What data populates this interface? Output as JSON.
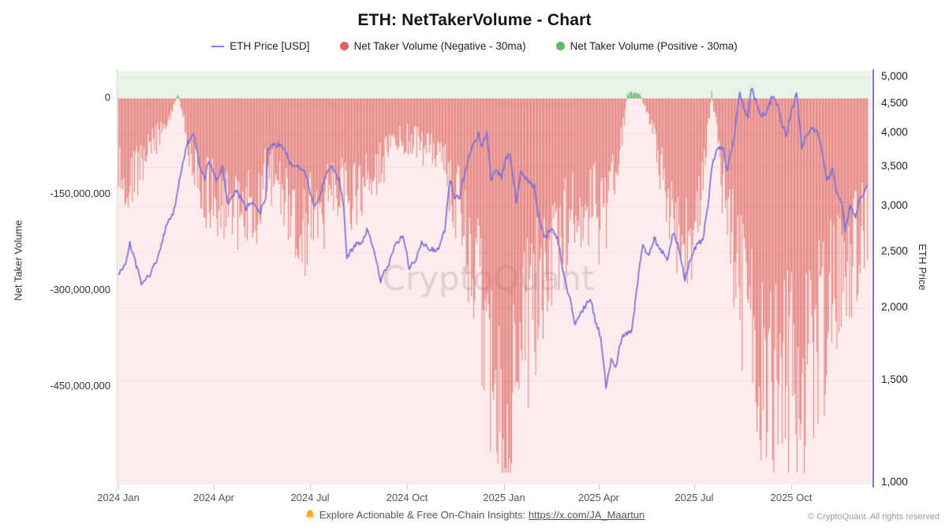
{
  "header": {
    "title": "ETH: NetTakerVolume - Chart"
  },
  "legend": {
    "items": [
      {
        "label": "ETH Price [USD]",
        "marker": "line",
        "color": "#8a7fe0"
      },
      {
        "label": "Net Taker Volume (Negative - 30ma)",
        "marker": "dot",
        "color": "#e6605d"
      },
      {
        "label": "Net Taker Volume (Positive - 30ma)",
        "marker": "dot",
        "color": "#63b863"
      }
    ]
  },
  "watermark": "CryptoQuant",
  "footer": {
    "icon": "bell-icon",
    "text": "Explore Actionable & Free On-Chain Insights: ",
    "link": "https://x.com/JA_Maartun",
    "copyright": "© CryptoQuant. All rights reserved"
  },
  "chart_data": {
    "type": "mixed",
    "title": "ETH: NetTakerVolume - Chart",
    "xlabel": "",
    "x_axis": {
      "start": "2024-01-01",
      "end": "2025-12-12",
      "ticks": [
        "2024 Jan",
        "2024 Apr",
        "2024 Jul",
        "2024 Oct",
        "2025 Jan",
        "2025 Apr",
        "2025 Jul",
        "2025 Oct"
      ]
    },
    "left_axis": {
      "title": "Net Taker Volume",
      "unit": "USD",
      "ylim_millions": [
        -590,
        43
      ],
      "ticks": [
        {
          "label": "0",
          "value_millions": 0
        },
        {
          "label": "-150,000,000",
          "value_millions": -150
        },
        {
          "label": "-300,000,000",
          "value_millions": -300
        },
        {
          "label": "-450,000,000",
          "value_millions": -450
        }
      ]
    },
    "right_axis": {
      "title": "ETH Price",
      "scale": "log",
      "ylim": [
        1000,
        5100
      ],
      "ticks": [
        {
          "label": "5,000",
          "value": 5000
        },
        {
          "label": "4,500",
          "value": 4500
        },
        {
          "label": "4,000",
          "value": 4000
        },
        {
          "label": "3,500",
          "value": 3500
        },
        {
          "label": "3,000",
          "value": 3000
        },
        {
          "label": "2,500",
          "value": 2500
        },
        {
          "label": "2,000",
          "value": 2000
        },
        {
          "label": "1,500",
          "value": 1500
        },
        {
          "label": "1,000",
          "value": 1000
        }
      ]
    },
    "background_zones": {
      "positive": "#e9f3e6",
      "negative": "#fcedec"
    },
    "grid": "horizontal-faint",
    "series": [
      {
        "name": "ETH Price [USD]",
        "type": "line",
        "axis": "right",
        "color": "#7b6fd9",
        "points": [
          [
            "2024-01-01",
            2300
          ],
          [
            "2024-01-08",
            2380
          ],
          [
            "2024-01-12",
            2580
          ],
          [
            "2024-01-23",
            2200
          ],
          [
            "2024-02-01",
            2300
          ],
          [
            "2024-02-09",
            2490
          ],
          [
            "2024-02-16",
            2790
          ],
          [
            "2024-02-23",
            2950
          ],
          [
            "2024-02-29",
            3380
          ],
          [
            "2024-03-06",
            3820
          ],
          [
            "2024-03-12",
            4010
          ],
          [
            "2024-03-18",
            3530
          ],
          [
            "2024-03-23",
            3340
          ],
          [
            "2024-03-27",
            3600
          ],
          [
            "2024-04-03",
            3310
          ],
          [
            "2024-04-09",
            3510
          ],
          [
            "2024-04-14",
            3010
          ],
          [
            "2024-04-22",
            3200
          ],
          [
            "2024-05-01",
            2970
          ],
          [
            "2024-05-07",
            3060
          ],
          [
            "2024-05-14",
            2900
          ],
          [
            "2024-05-20",
            3090
          ],
          [
            "2024-05-22",
            3790
          ],
          [
            "2024-05-28",
            3850
          ],
          [
            "2024-06-05",
            3810
          ],
          [
            "2024-06-12",
            3560
          ],
          [
            "2024-06-20",
            3510
          ],
          [
            "2024-06-27",
            3400
          ],
          [
            "2024-07-05",
            2970
          ],
          [
            "2024-07-10",
            3100
          ],
          [
            "2024-07-17",
            3450
          ],
          [
            "2024-07-22",
            3500
          ],
          [
            "2024-07-29",
            3320
          ],
          [
            "2024-08-02",
            2990
          ],
          [
            "2024-08-05",
            2450
          ],
          [
            "2024-08-12",
            2560
          ],
          [
            "2024-08-20",
            2620
          ],
          [
            "2024-08-25",
            2740
          ],
          [
            "2024-08-31",
            2510
          ],
          [
            "2024-09-06",
            2230
          ],
          [
            "2024-09-13",
            2360
          ],
          [
            "2024-09-20",
            2560
          ],
          [
            "2024-09-27",
            2690
          ],
          [
            "2024-10-03",
            2360
          ],
          [
            "2024-10-09",
            2390
          ],
          [
            "2024-10-15",
            2610
          ],
          [
            "2024-10-23",
            2530
          ],
          [
            "2024-10-31",
            2510
          ],
          [
            "2024-11-06",
            2730
          ],
          [
            "2024-11-11",
            3330
          ],
          [
            "2024-11-15",
            3090
          ],
          [
            "2024-11-20",
            3110
          ],
          [
            "2024-11-25",
            3420
          ],
          [
            "2024-11-30",
            3700
          ],
          [
            "2024-12-04",
            3850
          ],
          [
            "2024-12-08",
            4000
          ],
          [
            "2024-12-11",
            3830
          ],
          [
            "2024-12-16",
            3990
          ],
          [
            "2024-12-20",
            3340
          ],
          [
            "2024-12-24",
            3480
          ],
          [
            "2024-12-30",
            3360
          ],
          [
            "2025-01-03",
            3610
          ],
          [
            "2025-01-07",
            3690
          ],
          [
            "2025-01-13",
            3030
          ],
          [
            "2025-01-17",
            3430
          ],
          [
            "2025-01-24",
            3310
          ],
          [
            "2025-01-30",
            3240
          ],
          [
            "2025-02-03",
            2880
          ],
          [
            "2025-02-09",
            2630
          ],
          [
            "2025-02-14",
            2730
          ],
          [
            "2025-02-21",
            2660
          ],
          [
            "2025-02-26",
            2330
          ],
          [
            "2025-03-04",
            2100
          ],
          [
            "2025-03-10",
            1870
          ],
          [
            "2025-03-14",
            1940
          ],
          [
            "2025-03-19",
            2010
          ],
          [
            "2025-03-24",
            2090
          ],
          [
            "2025-03-29",
            1900
          ],
          [
            "2025-04-03",
            1790
          ],
          [
            "2025-04-08",
            1470
          ],
          [
            "2025-04-13",
            1630
          ],
          [
            "2025-04-18",
            1590
          ],
          [
            "2025-04-23",
            1790
          ],
          [
            "2025-04-28",
            1800
          ],
          [
            "2025-05-03",
            1840
          ],
          [
            "2025-05-08",
            2210
          ],
          [
            "2025-05-13",
            2560
          ],
          [
            "2025-05-19",
            2460
          ],
          [
            "2025-05-24",
            2630
          ],
          [
            "2025-05-30",
            2530
          ],
          [
            "2025-06-05",
            2410
          ],
          [
            "2025-06-11",
            2700
          ],
          [
            "2025-06-16",
            2540
          ],
          [
            "2025-06-22",
            2240
          ],
          [
            "2025-06-28",
            2440
          ],
          [
            "2025-07-03",
            2580
          ],
          [
            "2025-07-09",
            2620
          ],
          [
            "2025-07-14",
            3010
          ],
          [
            "2025-07-18",
            3550
          ],
          [
            "2025-07-22",
            3740
          ],
          [
            "2025-07-28",
            3800
          ],
          [
            "2025-08-01",
            3430
          ],
          [
            "2025-08-08",
            3950
          ],
          [
            "2025-08-13",
            4740
          ],
          [
            "2025-08-17",
            4420
          ],
          [
            "2025-08-21",
            4280
          ],
          [
            "2025-08-24",
            4800
          ],
          [
            "2025-08-28",
            4550
          ],
          [
            "2025-09-01",
            4300
          ],
          [
            "2025-09-07",
            4310
          ],
          [
            "2025-09-13",
            4650
          ],
          [
            "2025-09-18",
            4490
          ],
          [
            "2025-09-22",
            4180
          ],
          [
            "2025-09-26",
            3950
          ],
          [
            "2025-10-01",
            4350
          ],
          [
            "2025-10-06",
            4690
          ],
          [
            "2025-10-11",
            3760
          ],
          [
            "2025-10-15",
            3990
          ],
          [
            "2025-10-21",
            4070
          ],
          [
            "2025-10-26",
            4010
          ],
          [
            "2025-10-30",
            3770
          ],
          [
            "2025-11-04",
            3310
          ],
          [
            "2025-11-09",
            3470
          ],
          [
            "2025-11-14",
            3140
          ],
          [
            "2025-11-18",
            3020
          ],
          [
            "2025-11-21",
            2730
          ],
          [
            "2025-11-26",
            2990
          ],
          [
            "2025-12-01",
            2890
          ],
          [
            "2025-12-05",
            3080
          ],
          [
            "2025-12-09",
            3170
          ],
          [
            "2025-12-12",
            3290
          ]
        ]
      },
      {
        "name": "Net Taker Volume (30ma)",
        "type": "bar",
        "axis": "left",
        "negative_color": "#dd5c58",
        "positive_color": "#5aaf5a",
        "unit": "millions USD",
        "envelope_points": [
          [
            "2024-01-01",
            -110
          ],
          [
            "2024-01-10",
            -125
          ],
          [
            "2024-01-20",
            -110
          ],
          [
            "2024-01-28",
            -90
          ],
          [
            "2024-02-05",
            -65
          ],
          [
            "2024-02-13",
            -45
          ],
          [
            "2024-02-20",
            -28
          ],
          [
            "2024-02-26",
            10
          ],
          [
            "2024-03-02",
            -25
          ],
          [
            "2024-03-08",
            -75
          ],
          [
            "2024-03-16",
            -120
          ],
          [
            "2024-03-24",
            -145
          ],
          [
            "2024-04-02",
            -155
          ],
          [
            "2024-04-12",
            -168
          ],
          [
            "2024-04-22",
            -182
          ],
          [
            "2024-05-02",
            -175
          ],
          [
            "2024-05-12",
            -162
          ],
          [
            "2024-05-21",
            -118
          ],
          [
            "2024-05-28",
            -135
          ],
          [
            "2024-06-06",
            -170
          ],
          [
            "2024-06-14",
            -205
          ],
          [
            "2024-06-24",
            -215
          ],
          [
            "2024-07-03",
            -185
          ],
          [
            "2024-07-12",
            -148
          ],
          [
            "2024-07-21",
            -128
          ],
          [
            "2024-07-30",
            -138
          ],
          [
            "2024-08-07",
            -158
          ],
          [
            "2024-08-16",
            -150
          ],
          [
            "2024-08-25",
            -132
          ],
          [
            "2024-09-03",
            -110
          ],
          [
            "2024-09-12",
            -88
          ],
          [
            "2024-09-21",
            -70
          ],
          [
            "2024-09-30",
            -62
          ],
          [
            "2024-10-10",
            -66
          ],
          [
            "2024-10-20",
            -72
          ],
          [
            "2024-10-30",
            -85
          ],
          [
            "2024-11-08",
            -118
          ],
          [
            "2024-11-17",
            -162
          ],
          [
            "2024-11-26",
            -215
          ],
          [
            "2024-12-04",
            -272
          ],
          [
            "2024-12-11",
            -330
          ],
          [
            "2024-12-18",
            -395
          ],
          [
            "2024-12-26",
            -445
          ],
          [
            "2025-01-02",
            -450
          ],
          [
            "2025-01-10",
            -425
          ],
          [
            "2025-01-18",
            -385
          ],
          [
            "2025-01-26",
            -335
          ],
          [
            "2025-02-04",
            -288
          ],
          [
            "2025-02-13",
            -248
          ],
          [
            "2025-02-22",
            -218
          ],
          [
            "2025-03-03",
            -198
          ],
          [
            "2025-03-12",
            -182
          ],
          [
            "2025-03-21",
            -172
          ],
          [
            "2025-03-30",
            -165
          ],
          [
            "2025-04-08",
            -152
          ],
          [
            "2025-04-16",
            -118
          ],
          [
            "2025-04-23",
            -60
          ],
          [
            "2025-04-28",
            6
          ],
          [
            "2025-05-04",
            9
          ],
          [
            "2025-05-10",
            7
          ],
          [
            "2025-05-16",
            -18
          ],
          [
            "2025-05-23",
            -60
          ],
          [
            "2025-05-31",
            -115
          ],
          [
            "2025-06-08",
            -165
          ],
          [
            "2025-06-15",
            -205
          ],
          [
            "2025-06-22",
            -228
          ],
          [
            "2025-06-29",
            -205
          ],
          [
            "2025-07-05",
            -155
          ],
          [
            "2025-07-10",
            -95
          ],
          [
            "2025-07-14",
            -40
          ],
          [
            "2025-07-17",
            8
          ],
          [
            "2025-07-21",
            -45
          ],
          [
            "2025-07-28",
            -120
          ],
          [
            "2025-08-04",
            -205
          ],
          [
            "2025-08-11",
            -275
          ],
          [
            "2025-08-18",
            -340
          ],
          [
            "2025-08-25",
            -395
          ],
          [
            "2025-09-01",
            -440
          ],
          [
            "2025-09-08",
            -475
          ],
          [
            "2025-09-15",
            -485
          ],
          [
            "2025-09-22",
            -460
          ],
          [
            "2025-09-29",
            -415
          ],
          [
            "2025-10-06",
            -435
          ],
          [
            "2025-10-10",
            -465
          ],
          [
            "2025-10-16",
            -430
          ],
          [
            "2025-10-23",
            -385
          ],
          [
            "2025-10-30",
            -340
          ],
          [
            "2025-11-06",
            -318
          ],
          [
            "2025-11-13",
            -300
          ],
          [
            "2025-11-20",
            -282
          ],
          [
            "2025-11-27",
            -252
          ],
          [
            "2025-12-04",
            -218
          ],
          [
            "2025-12-12",
            -185
          ]
        ]
      }
    ]
  }
}
